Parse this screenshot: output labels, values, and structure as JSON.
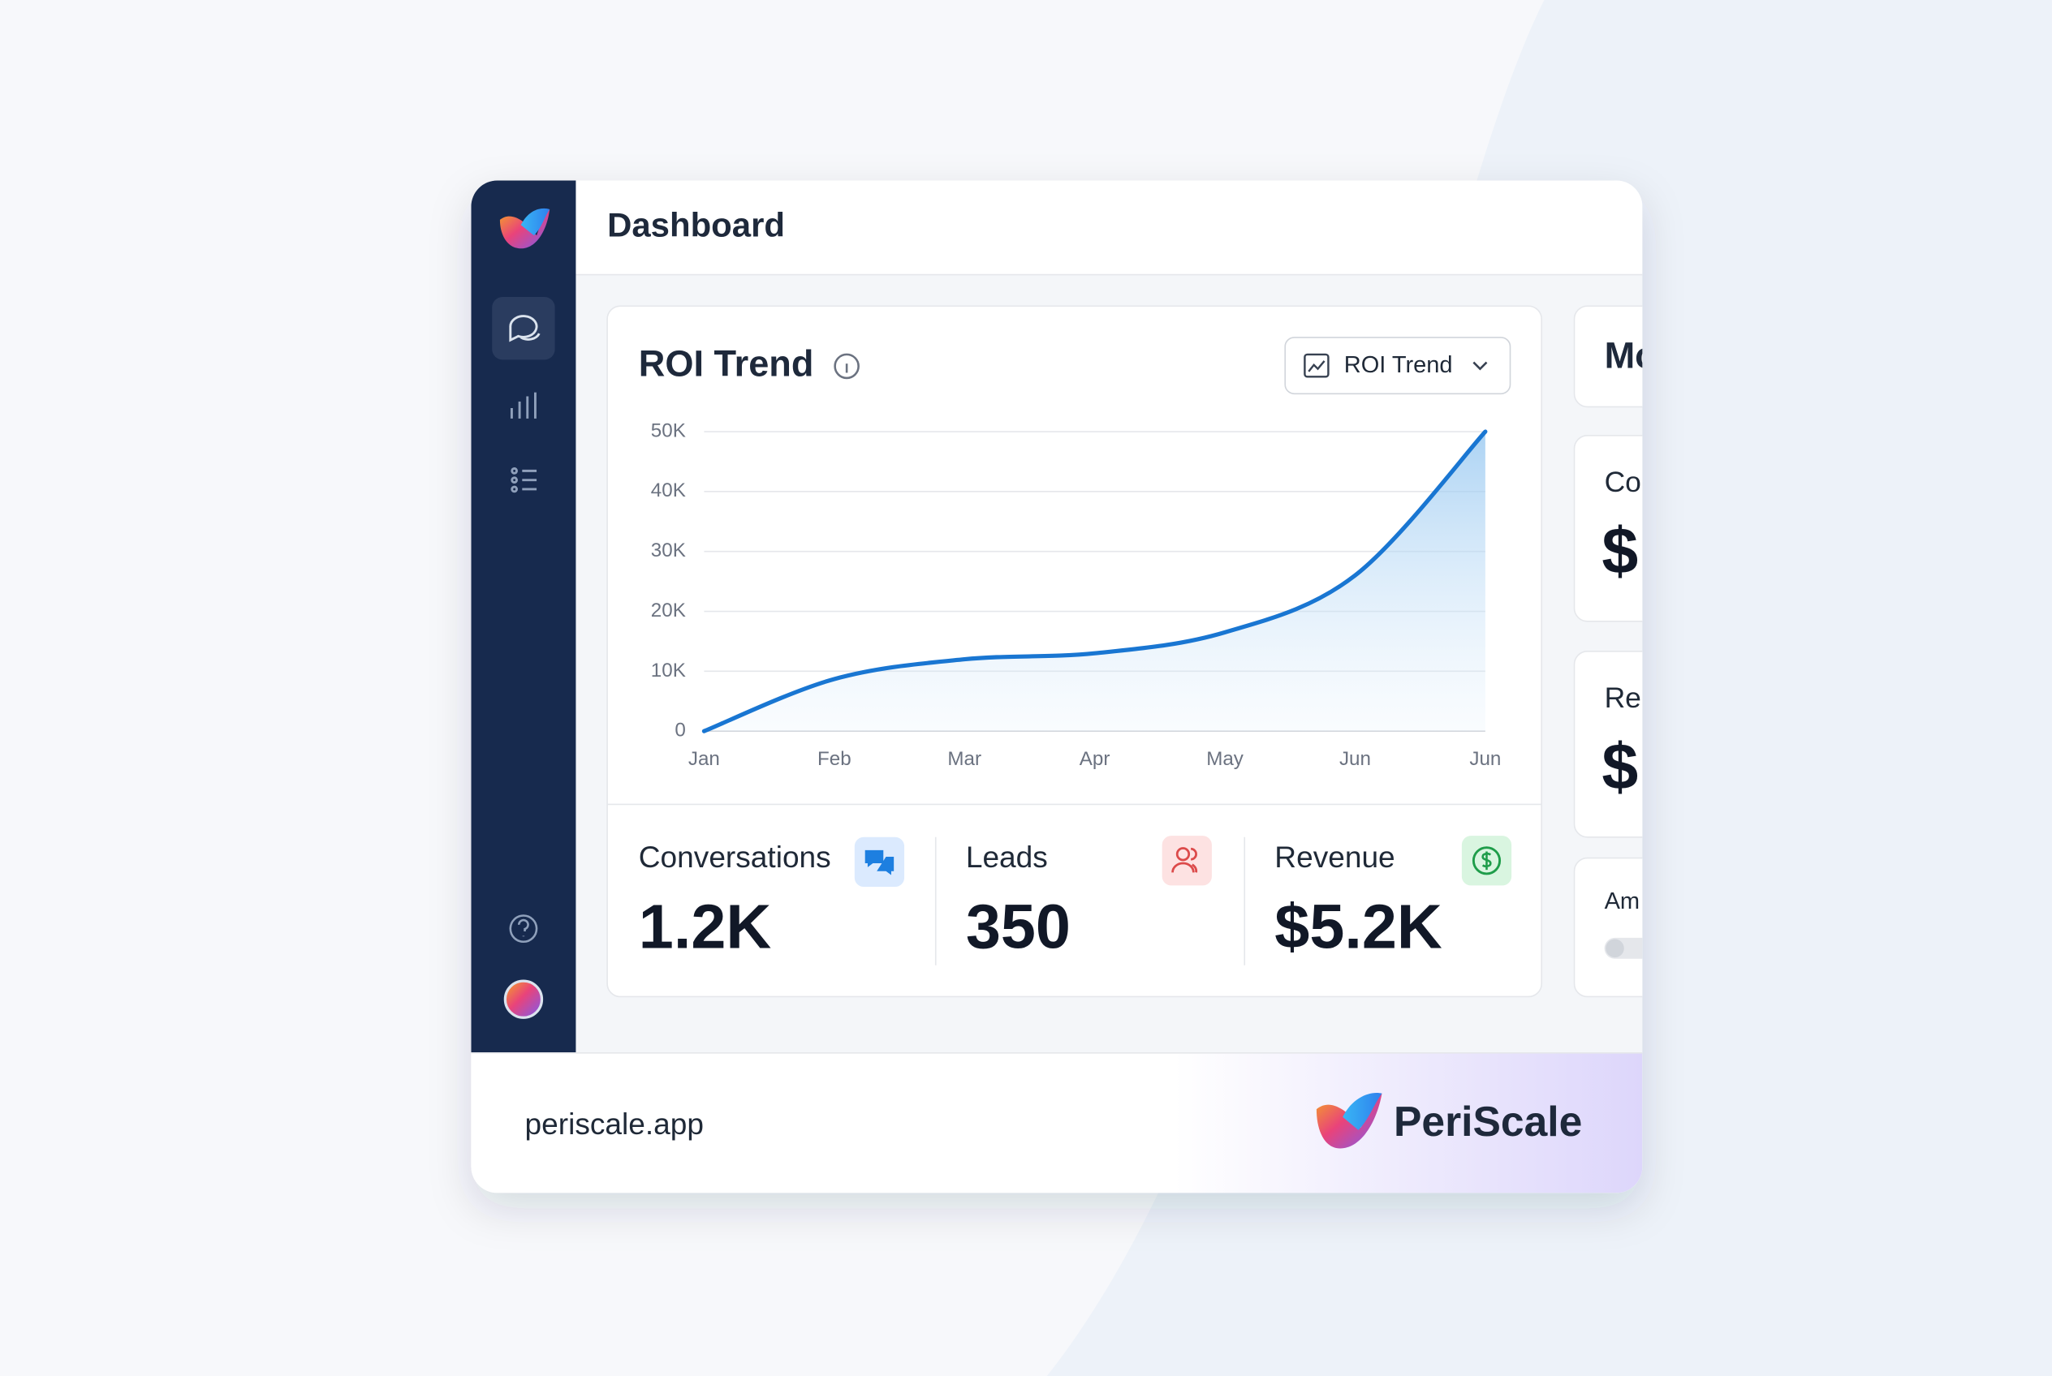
{
  "header": {
    "title": "Dashboard"
  },
  "chart_data": {
    "type": "line",
    "title": "ROI Trend",
    "dropdown": "ROI Trend",
    "categories": [
      "Jan",
      "Feb",
      "Mar",
      "Apr",
      "May",
      "Jun",
      "Jun"
    ],
    "values": [
      0,
      8700,
      12000,
      13000,
      16500,
      26000,
      50000
    ],
    "color": "#1976d2",
    "ylim": [
      0,
      50000
    ],
    "yticks": [
      0,
      {
        "value": 10000,
        "label": "10K"
      },
      {
        "value": 20000,
        "label": "20K"
      },
      {
        "value": 30000,
        "label": "30K"
      },
      {
        "value": 40000,
        "label": "40K"
      },
      {
        "value": 50000,
        "label": "50K"
      }
    ],
    "grid": true
  },
  "stats": [
    {
      "label": "Conversations",
      "value": "1.2K"
    },
    {
      "label": "Leads",
      "value": "350"
    },
    {
      "label": "Revenue",
      "value": "$5.2K"
    }
  ],
  "side_panel": {
    "title": "Mo",
    "cards": [
      {
        "label": "Co",
        "value": "$"
      },
      {
        "label": "Re",
        "value": "$"
      },
      {
        "label": "Am"
      }
    ]
  },
  "footer": {
    "url": "periscale.app",
    "brand": "PeriScale"
  }
}
